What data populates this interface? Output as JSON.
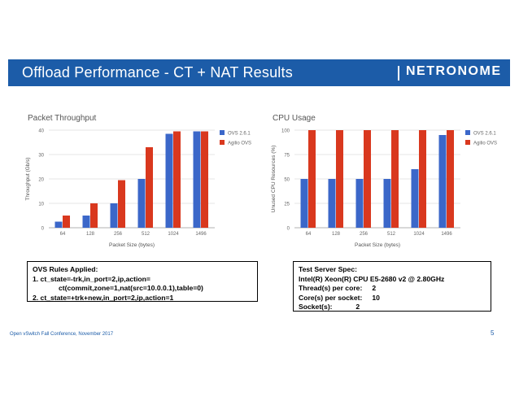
{
  "slide": {
    "title": "Offload Performance - CT + NAT Results",
    "brand": "NETRONOME",
    "footer": "Open vSwitch Fall Conference, November 2017",
    "page_number": "5"
  },
  "colors": {
    "banner": "#1c5ca8",
    "ovs": "#3b67c9",
    "agilio": "#d9381e"
  },
  "chart_data": [
    {
      "type": "bar",
      "title": "Packet Throughput",
      "xlabel": "Packet Size (bytes)",
      "ylabel": "Throughput (Gb/s)",
      "categories": [
        "64",
        "128",
        "256",
        "512",
        "1024",
        "1496"
      ],
      "ylim": [
        0,
        40
      ],
      "yticks": [
        "0",
        "10",
        "20",
        "30",
        "40"
      ],
      "grid": true,
      "legend": "right",
      "series": [
        {
          "name": "OVS 2.6.1",
          "color": "#3b67c9",
          "values": [
            2.5,
            5,
            10,
            20,
            38.5,
            39.5
          ]
        },
        {
          "name": "Agilio OVS",
          "color": "#d9381e",
          "values": [
            5,
            10,
            19.5,
            33,
            39.5,
            39.5
          ]
        }
      ]
    },
    {
      "type": "bar",
      "title": "CPU Usage",
      "xlabel": "Packet Size (bytes)",
      "ylabel": "Unused CPU Resources (%)",
      "categories": [
        "64",
        "128",
        "256",
        "512",
        "1024",
        "1496"
      ],
      "ylim": [
        0,
        100
      ],
      "yticks": [
        "0",
        "25",
        "50",
        "75",
        "100"
      ],
      "grid": true,
      "legend": "right",
      "series": [
        {
          "name": "OVS 2.6.1",
          "color": "#3b67c9",
          "values": [
            50,
            50,
            50,
            50,
            60,
            95
          ]
        },
        {
          "name": "Agilio OVS",
          "color": "#d9381e",
          "values": [
            100,
            100,
            100,
            100,
            100,
            100
          ]
        }
      ]
    }
  ],
  "rules_box": {
    "heading": "OVS Rules Applied:",
    "line1": "1. ct_state=-trk,in_port=2,ip,action=",
    "line1b": "ct(commit,zone=1,nat(src=10.0.0.1),table=0)",
    "line2": "2. ct_state=+trk+new,in_port=2,ip,action=1"
  },
  "spec_box": {
    "heading": "Test Server Spec:",
    "cpu": "Intel(R) Xeon(R) CPU E5-2680 v2 @ 2.80GHz",
    "threads_label": "Thread(s) per core:",
    "threads_value": "2",
    "cores_label": "Core(s) per socket:",
    "cores_value": "10",
    "sockets_label": "Socket(s):",
    "sockets_value": "2"
  }
}
